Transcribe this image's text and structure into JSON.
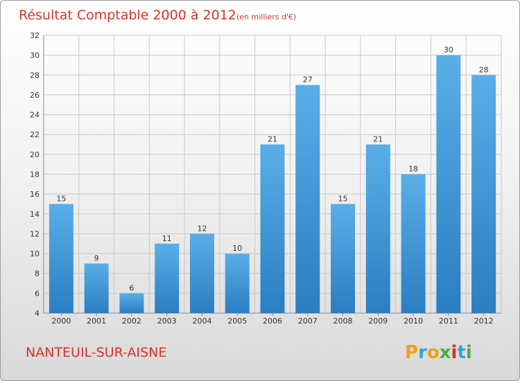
{
  "chart_data": {
    "type": "bar",
    "title": "Résultat Comptable 2000 à 2012",
    "subtitle": "(en milliers d'€)",
    "categories": [
      "2000",
      "2001",
      "2002",
      "2003",
      "2004",
      "2005",
      "2006",
      "2007",
      "2008",
      "2009",
      "2010",
      "2011",
      "2012"
    ],
    "values": [
      15,
      9,
      6,
      11,
      12,
      10,
      21,
      27,
      15,
      21,
      18,
      30,
      28
    ],
    "ylim": [
      4,
      32
    ],
    "yticks": [
      4,
      6,
      8,
      10,
      12,
      14,
      16,
      18,
      20,
      22,
      24,
      26,
      28,
      30,
      32
    ],
    "grid": true,
    "bar_color_top": "#5aaee8",
    "bar_color_bottom": "#2a7ec2"
  },
  "footer": {
    "town": "NANTEUIL-SUR-AISNE",
    "logo_letters": [
      "P",
      "r",
      "o",
      "x",
      "i",
      "t",
      "i"
    ],
    "logo_colors": [
      "#e8a317",
      "#3aa0d8",
      "#e8a317",
      "#4cae3a",
      "#d4332a",
      "#3aa0d8",
      "#4cae3a"
    ]
  }
}
